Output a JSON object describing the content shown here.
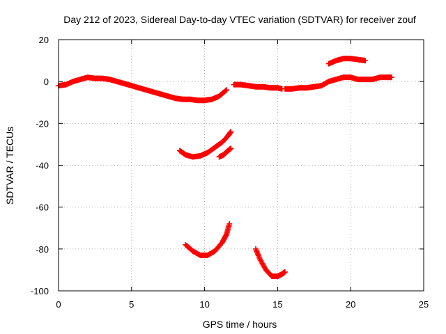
{
  "chart_data": {
    "type": "scatter",
    "title": "Day 212 of 2023, Sidereal Day-to-day VTEC variation (SDTVAR) for receiver zouf",
    "xlabel": "GPS time / hours",
    "ylabel": "SDTVAR / TECUs",
    "xlim": [
      0,
      25
    ],
    "ylim": [
      -100,
      20
    ],
    "xticks": [
      "0",
      "5",
      "10",
      "15",
      "20",
      "25"
    ],
    "yticks": [
      "20",
      "0",
      "-20",
      "-40",
      "-60",
      "-80",
      "-100"
    ],
    "grid": true,
    "marker": "plus",
    "color": "#ff0000",
    "series": [
      {
        "name": "main",
        "points": [
          [
            0,
            -2
          ],
          [
            0.5,
            -1.5
          ],
          [
            1,
            0
          ],
          [
            1.5,
            1
          ],
          [
            2,
            2
          ],
          [
            2.5,
            1.5
          ],
          [
            3,
            1.5
          ],
          [
            3.5,
            1
          ],
          [
            4,
            0
          ],
          [
            4.5,
            -1
          ],
          [
            5,
            -2
          ],
          [
            5.5,
            -3
          ],
          [
            6,
            -4
          ],
          [
            6.5,
            -5
          ],
          [
            7,
            -6
          ],
          [
            7.5,
            -7
          ],
          [
            8,
            -8
          ],
          [
            8.5,
            -8.5
          ],
          [
            9,
            -8.5
          ],
          [
            9.5,
            -9
          ],
          [
            10,
            -9
          ],
          [
            10.5,
            -8.5
          ],
          [
            11,
            -7
          ],
          [
            11.5,
            -4
          ]
        ]
      },
      {
        "name": "segment-2",
        "points": [
          [
            12,
            -1.5
          ],
          [
            12.5,
            -1.5
          ],
          [
            13,
            -2
          ],
          [
            13.5,
            -2.5
          ],
          [
            14,
            -2.5
          ],
          [
            14.5,
            -3
          ],
          [
            15,
            -3
          ],
          [
            15.3,
            -3.5
          ]
        ]
      },
      {
        "name": "segment-3",
        "points": [
          [
            15.5,
            -3.5
          ],
          [
            16,
            -3.5
          ],
          [
            16.5,
            -3
          ],
          [
            17,
            -3
          ],
          [
            17.5,
            -2.5
          ],
          [
            18,
            -2
          ],
          [
            18.5,
            0
          ],
          [
            19,
            1
          ],
          [
            19.5,
            2
          ],
          [
            20,
            2
          ],
          [
            20.5,
            1
          ],
          [
            21,
            1
          ],
          [
            21.5,
            1
          ],
          [
            22,
            2
          ],
          [
            22.5,
            2
          ],
          [
            22.8,
            2
          ]
        ]
      },
      {
        "name": "segment-4",
        "points": [
          [
            18.5,
            8.5
          ],
          [
            19,
            10
          ],
          [
            19.5,
            11
          ],
          [
            20,
            11
          ],
          [
            20.5,
            10.5
          ],
          [
            21,
            10
          ]
        ]
      },
      {
        "name": "arc-1",
        "points": [
          [
            8.3,
            -33
          ],
          [
            8.7,
            -35
          ],
          [
            9.2,
            -36
          ],
          [
            9.7,
            -35.5
          ],
          [
            10.2,
            -34
          ],
          [
            10.7,
            -31.5
          ],
          [
            11.2,
            -29
          ],
          [
            11.6,
            -26
          ],
          [
            11.8,
            -24
          ]
        ]
      },
      {
        "name": "arc-2",
        "points": [
          [
            11,
            -36
          ],
          [
            11.3,
            -35
          ],
          [
            11.6,
            -33
          ],
          [
            11.8,
            -32
          ]
        ]
      },
      {
        "name": "arc-3",
        "points": [
          [
            8.7,
            -78
          ],
          [
            9.2,
            -81
          ],
          [
            9.7,
            -83
          ],
          [
            10.2,
            -83
          ],
          [
            10.7,
            -81
          ],
          [
            11.2,
            -77
          ],
          [
            11.5,
            -73
          ],
          [
            11.7,
            -68
          ]
        ]
      },
      {
        "name": "arc-4",
        "points": [
          [
            13.5,
            -80
          ],
          [
            13.8,
            -85
          ],
          [
            14.2,
            -90
          ],
          [
            14.6,
            -93
          ],
          [
            15,
            -93
          ],
          [
            15.3,
            -92
          ],
          [
            15.5,
            -91
          ]
        ]
      }
    ]
  }
}
